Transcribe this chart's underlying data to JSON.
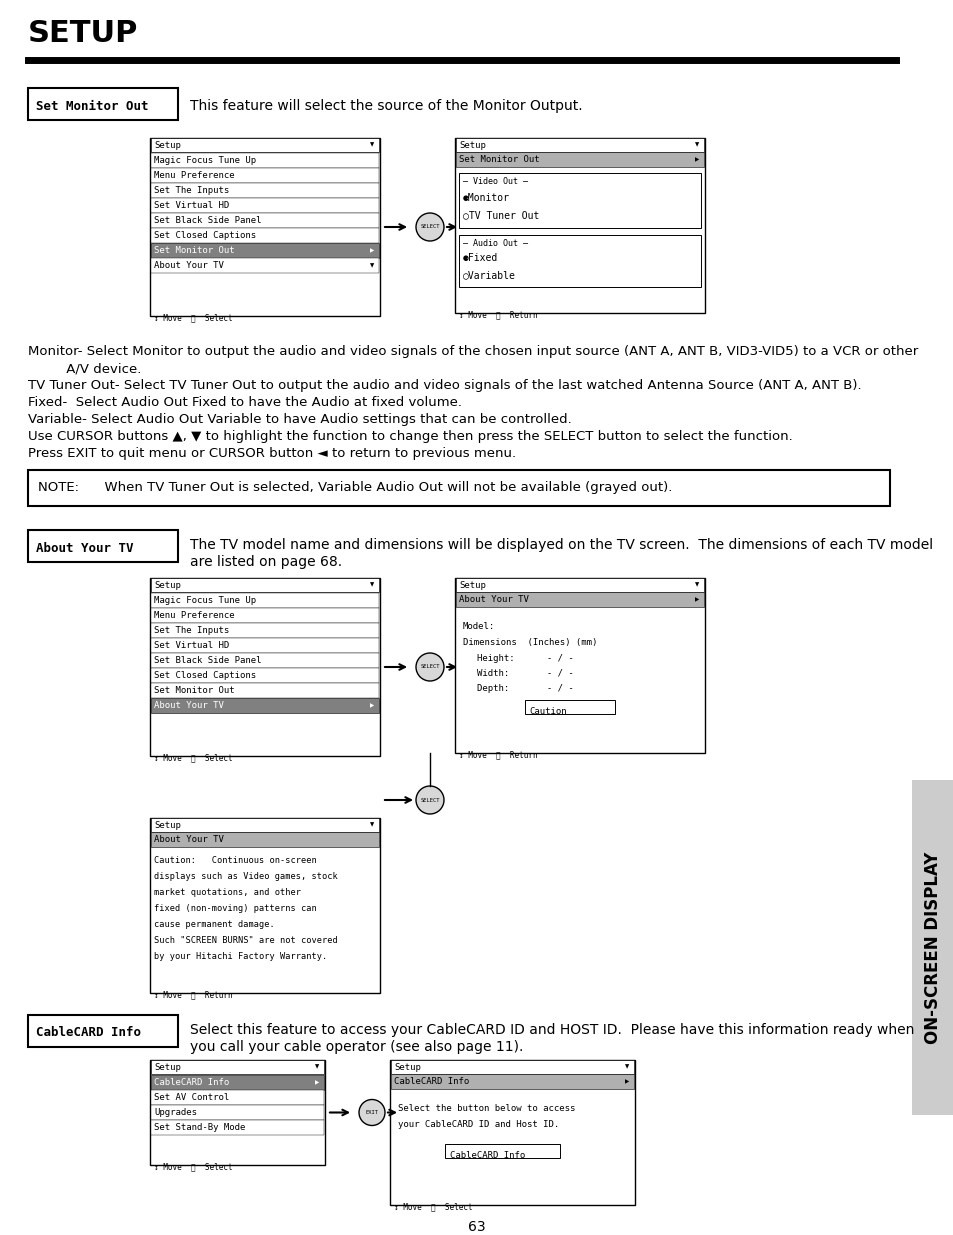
{
  "page_number": "63",
  "title": "SETUP",
  "bg_color": "#ffffff",
  "text_color": "#000000",
  "sidebar_text": "ON-SCREEN DISPLAY",
  "sidebar_bg": "#d0d0d0",
  "section1_label": "Set Monitor Out",
  "section1_desc": "This feature will select the source of the Monitor Output.",
  "section1_body": [
    "Monitor- Select Monitor to output the audio and video signals of the chosen input source (ANT A, ANT B, VID3-VID5) to a VCR or other",
    "         A/V device.",
    "TV Tuner Out- Select TV Tuner Out to output the audio and video signals of the last watched Antenna Source (ANT A, ANT B).",
    "Fixed-  Select Audio Out Fixed to have the Audio at fixed volume.",
    "Variable- Select Audio Out Variable to have Audio settings that can be controlled.",
    "Use CURSOR buttons ▲, ▼ to highlight the function to change then press the SELECT button to select the function.",
    "Press EXIT to quit menu or CURSOR button ◄ to return to previous menu."
  ],
  "note_text": "NOTE:      When TV Tuner Out is selected, Variable Audio Out will not be available (grayed out).",
  "section2_label": "About Your TV",
  "section2_desc": "The TV model name and dimensions will be displayed on the TV screen.  The dimensions of each TV model\nare listed on page 68.",
  "section3_label": "CableCARD Info",
  "section3_desc": "Select this feature to access your CableCARD ID and HOST ID.  Please have this information ready when\nyou call your cable operator (see also page 11).",
  "left_menu1": [
    "Setup",
    "Magic Focus Tune Up",
    "Menu Preference",
    "Set The Inputs",
    "Set Virtual HD",
    "Set Black Side Panel",
    "Set Closed Captions",
    "Set Monitor Out",
    "About Your TV",
    "↕ Move  Ⓢ  Select"
  ],
  "left_menu1_selected": "Set Monitor Out",
  "right_menu1_title": "Setup",
  "right_menu1_selected": "Set Monitor Out",
  "right_menu1_footer": "↕ Move  Ⓢ  Return",
  "left_menu2": [
    "Setup",
    "Magic Focus Tune Up",
    "Menu Preference",
    "Set The Inputs",
    "Set Virtual HD",
    "Set Black Side Panel",
    "Set Closed Captions",
    "Set Monitor Out",
    "About Your TV",
    "↕ Move  Ⓢ  Select"
  ],
  "left_menu2_selected": "About Your TV",
  "right_menu2_title": "Setup",
  "right_menu2_selected": "About Your TV",
  "right_menu2_footer": "↕ Move  Ⓢ  Return",
  "caution_menu_title": "Setup",
  "caution_menu_selected": "About Your TV",
  "caution_text": "Caution:   Continuous on-screen\ndisplays such as Video games, stock\nmarket quotations, and other\nfixed (non-moving) patterns can\ncause permanent damage.\nSuch \"SCREEN BURNS\" are not covered\nby your Hitachi Factory Warranty.",
  "caution_footer": "↕ Move  Ⓢ  Return",
  "left_menu3": [
    "Setup",
    "CableCARD Info",
    "Set AV Control",
    "Upgrades",
    "Set Stand-By Mode",
    "↕ Move  Ⓢ  Select"
  ],
  "left_menu3_selected": "CableCARD Info",
  "right_menu3_title": "Setup",
  "right_menu3_selected": "CableCARD Info",
  "right_menu3_footer": "↕ Move  Ⓢ  Select"
}
